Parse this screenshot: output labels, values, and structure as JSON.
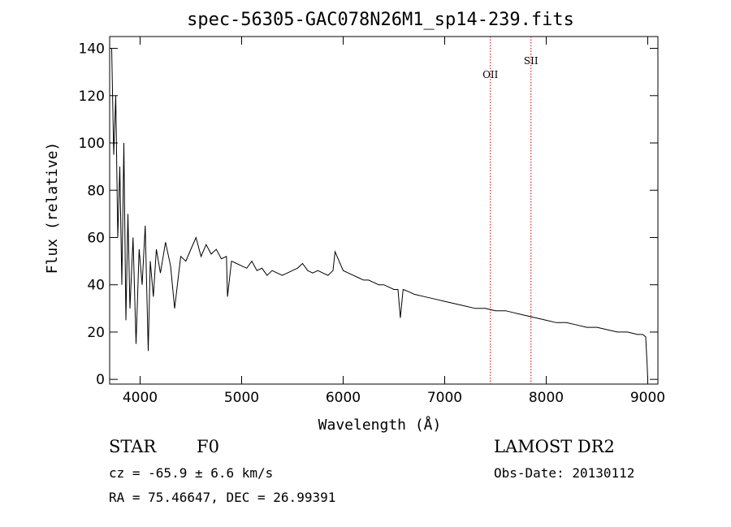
{
  "chart_data": {
    "type": "line",
    "title": "spec-56305-GAC078N26M1_sp14-239.fits",
    "xlabel": "Wavelength (Å)",
    "ylabel": "Flux (relative)",
    "xlim": [
      3700,
      9100
    ],
    "ylim": [
      -2,
      145
    ],
    "x_ticks": [
      4000,
      5000,
      6000,
      7000,
      8000,
      9000
    ],
    "y_ticks": [
      0,
      20,
      40,
      60,
      80,
      100,
      120,
      140
    ],
    "grid": false,
    "series": [
      {
        "line_color": "#000000",
        "x": [
          3720,
          3740,
          3760,
          3780,
          3800,
          3820,
          3840,
          3860,
          3880,
          3900,
          3930,
          3960,
          3990,
          4020,
          4050,
          4080,
          4100,
          4130,
          4160,
          4200,
          4250,
          4300,
          4340,
          4400,
          4450,
          4500,
          4550,
          4600,
          4650,
          4700,
          4750,
          4800,
          4850,
          4861,
          4900,
          4950,
          5000,
          5050,
          5100,
          5150,
          5200,
          5250,
          5300,
          5350,
          5400,
          5450,
          5500,
          5550,
          5600,
          5650,
          5700,
          5750,
          5800,
          5850,
          5900,
          5920,
          5940,
          5960,
          6000,
          6050,
          6100,
          6150,
          6200,
          6250,
          6300,
          6350,
          6400,
          6450,
          6500,
          6540,
          6563,
          6590,
          6650,
          6700,
          6800,
          6900,
          7000,
          7100,
          7200,
          7300,
          7400,
          7500,
          7600,
          7700,
          7800,
          7900,
          8000,
          8100,
          8200,
          8300,
          8400,
          8500,
          8600,
          8700,
          8800,
          8900,
          8950,
          8980,
          8995,
          9000
        ],
        "y": [
          140,
          95,
          120,
          60,
          90,
          40,
          100,
          25,
          70,
          30,
          60,
          15,
          55,
          40,
          65,
          12,
          50,
          35,
          55,
          45,
          58,
          48,
          30,
          52,
          50,
          55,
          60,
          52,
          57,
          53,
          55,
          51,
          52,
          35,
          50,
          49,
          48,
          47,
          50,
          46,
          47,
          44,
          46,
          45,
          44,
          45,
          46,
          47,
          49,
          46,
          45,
          46,
          45,
          44,
          46,
          54,
          52,
          50,
          46,
          45,
          44,
          43,
          42,
          42,
          41,
          40,
          40,
          39,
          38,
          38,
          26,
          38,
          37,
          36,
          35,
          34,
          33,
          32,
          31,
          30,
          30,
          29,
          29,
          28,
          27,
          26,
          25,
          24,
          24,
          23,
          22,
          22,
          21,
          20,
          20,
          19,
          19,
          18,
          5,
          0
        ]
      }
    ],
    "annotations": [
      {
        "label": "OII",
        "x": 7450,
        "color": "#cc0000"
      },
      {
        "label": "SII",
        "x": 7850,
        "color": "#cc0000"
      }
    ]
  },
  "info": {
    "object_class": "STAR",
    "subclass": "F0",
    "cz_text": "cz = -65.9 ± 6.6 km/s",
    "coords_text": "RA =  75.46647, DEC =  26.99391",
    "survey": "LAMOST DR2",
    "obs_date_text": "Obs-Date: 20130112"
  }
}
